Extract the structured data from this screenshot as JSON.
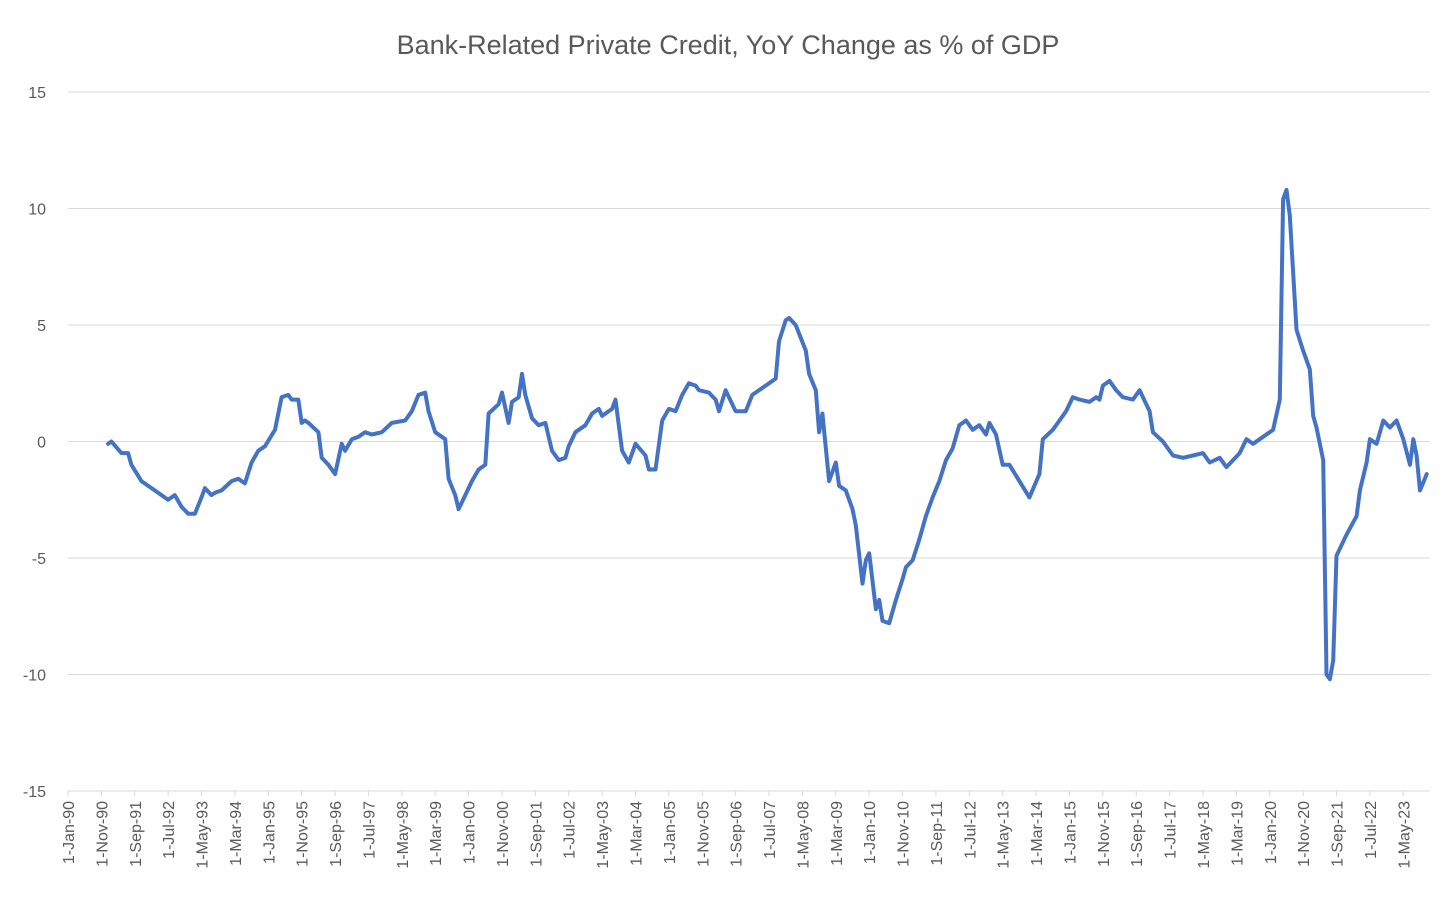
{
  "chart_data": {
    "type": "line",
    "title": "Bank-Related Private Credit, YoY Change as % of GDP",
    "color": "#4472c4",
    "grid": true,
    "ylim": [
      -15,
      15
    ],
    "yticks": [
      -15,
      -10,
      -5,
      0,
      5,
      10,
      15
    ],
    "xlim": [
      "1990-01-01",
      "2024-01-01"
    ],
    "xticks": [
      {
        "value": "1990-01-01",
        "label": "1-Jan-90"
      },
      {
        "value": "1990-11-01",
        "label": "1-Nov-90"
      },
      {
        "value": "1991-09-01",
        "label": "1-Sep-91"
      },
      {
        "value": "1992-07-01",
        "label": "1-Jul-92"
      },
      {
        "value": "1993-05-01",
        "label": "1-May-93"
      },
      {
        "value": "1994-03-01",
        "label": "1-Mar-94"
      },
      {
        "value": "1995-01-01",
        "label": "1-Jan-95"
      },
      {
        "value": "1995-11-01",
        "label": "1-Nov-95"
      },
      {
        "value": "1996-09-01",
        "label": "1-Sep-96"
      },
      {
        "value": "1997-07-01",
        "label": "1-Jul-97"
      },
      {
        "value": "1998-05-01",
        "label": "1-May-98"
      },
      {
        "value": "1999-03-01",
        "label": "1-Mar-99"
      },
      {
        "value": "2000-01-01",
        "label": "1-Jan-00"
      },
      {
        "value": "2000-11-01",
        "label": "1-Nov-00"
      },
      {
        "value": "2001-09-01",
        "label": "1-Sep-01"
      },
      {
        "value": "2002-07-01",
        "label": "1-Jul-02"
      },
      {
        "value": "2003-05-01",
        "label": "1-May-03"
      },
      {
        "value": "2004-03-01",
        "label": "1-Mar-04"
      },
      {
        "value": "2005-01-01",
        "label": "1-Jan-05"
      },
      {
        "value": "2005-11-01",
        "label": "1-Nov-05"
      },
      {
        "value": "2006-09-01",
        "label": "1-Sep-06"
      },
      {
        "value": "2007-07-01",
        "label": "1-Jul-07"
      },
      {
        "value": "2008-05-01",
        "label": "1-May-08"
      },
      {
        "value": "2009-03-01",
        "label": "1-Mar-09"
      },
      {
        "value": "2010-01-01",
        "label": "1-Jan-10"
      },
      {
        "value": "2010-11-01",
        "label": "1-Nov-10"
      },
      {
        "value": "2011-09-01",
        "label": "1-Sep-11"
      },
      {
        "value": "2012-07-01",
        "label": "1-Jul-12"
      },
      {
        "value": "2013-05-01",
        "label": "1-May-13"
      },
      {
        "value": "2014-03-01",
        "label": "1-Mar-14"
      },
      {
        "value": "2015-01-01",
        "label": "1-Jan-15"
      },
      {
        "value": "2015-11-01",
        "label": "1-Nov-15"
      },
      {
        "value": "2016-09-01",
        "label": "1-Sep-16"
      },
      {
        "value": "2017-07-01",
        "label": "1-Jul-17"
      },
      {
        "value": "2018-05-01",
        "label": "1-May-18"
      },
      {
        "value": "2019-03-01",
        "label": "1-Mar-19"
      },
      {
        "value": "2020-01-01",
        "label": "1-Jan-20"
      },
      {
        "value": "2020-11-01",
        "label": "1-Nov-20"
      },
      {
        "value": "2021-09-01",
        "label": "1-Sep-21"
      },
      {
        "value": "2022-07-01",
        "label": "1-Jul-22"
      },
      {
        "value": "2023-05-01",
        "label": "1-May-23"
      }
    ],
    "x": [
      "1991-01-01",
      "1991-02-01",
      "1991-05-01",
      "1991-07-01",
      "1991-08-01",
      "1991-11-01",
      "1992-02-01",
      "1992-05-01",
      "1992-07-01",
      "1992-09-01",
      "1992-11-01",
      "1993-01-01",
      "1993-03-01",
      "1993-05-01",
      "1993-06-01",
      "1993-08-01",
      "1993-09-01",
      "1993-11-01",
      "1994-02-01",
      "1994-04-01",
      "1994-06-01",
      "1994-08-01",
      "1994-10-01",
      "1994-12-01",
      "1995-03-01",
      "1995-05-01",
      "1995-07-01",
      "1995-08-01",
      "1995-10-01",
      "1995-11-01",
      "1995-12-01",
      "1996-01-01",
      "1996-04-01",
      "1996-05-01",
      "1996-07-01",
      "1996-09-01",
      "1996-11-01",
      "1996-12-01",
      "1997-02-01",
      "1997-04-01",
      "1997-06-01",
      "1997-08-01",
      "1997-11-01",
      "1998-02-01",
      "1998-06-01",
      "1998-08-01",
      "1998-10-01",
      "1998-12-01",
      "1999-01-01",
      "1999-03-01",
      "1999-06-01",
      "1999-07-01",
      "1999-09-01",
      "1999-10-01",
      "1999-12-01",
      "2000-02-01",
      "2000-04-01",
      "2000-06-01",
      "2000-07-01",
      "2000-10-01",
      "2000-11-01",
      "2001-01-01",
      "2001-02-01",
      "2001-04-01",
      "2001-05-01",
      "2001-06-01",
      "2001-08-01",
      "2001-10-01",
      "2001-12-01",
      "2002-02-01",
      "2002-04-01",
      "2002-06-01",
      "2002-07-01",
      "2002-09-01",
      "2002-12-01",
      "2003-02-01",
      "2003-04-01",
      "2003-05-01",
      "2003-08-01",
      "2003-09-01",
      "2003-11-01",
      "2004-01-01",
      "2004-03-01",
      "2004-06-01",
      "2004-07-01",
      "2004-09-01",
      "2004-11-01",
      "2005-01-01",
      "2005-03-01",
      "2005-05-01",
      "2005-07-01",
      "2005-09-01",
      "2005-10-01",
      "2006-01-01",
      "2006-03-01",
      "2006-04-01",
      "2006-06-01",
      "2006-09-01",
      "2006-12-01",
      "2007-02-01",
      "2007-04-01",
      "2007-06-01",
      "2007-09-01",
      "2007-10-01",
      "2007-12-01",
      "2008-01-01",
      "2008-03-01",
      "2008-06-01",
      "2008-07-01",
      "2008-09-01",
      "2008-10-01",
      "2008-11-01",
      "2009-01-01",
      "2009-03-01",
      "2009-04-01",
      "2009-06-01",
      "2009-08-01",
      "2009-09-01",
      "2009-11-01",
      "2009-12-01",
      "2010-01-01",
      "2010-03-01",
      "2010-04-01",
      "2010-05-01",
      "2010-07-01",
      "2010-09-01",
      "2010-11-01",
      "2010-12-01",
      "2011-02-01",
      "2011-04-01",
      "2011-06-01",
      "2011-08-01",
      "2011-10-01",
      "2011-12-01",
      "2012-02-01",
      "2012-04-01",
      "2012-06-01",
      "2012-08-01",
      "2012-10-01",
      "2012-12-01",
      "2013-01-01",
      "2013-03-01",
      "2013-05-01",
      "2013-07-01",
      "2013-10-01",
      "2014-01-01",
      "2014-04-01",
      "2014-05-01",
      "2014-08-01",
      "2014-10-01",
      "2014-12-01",
      "2015-02-01",
      "2015-04-01",
      "2015-07-01",
      "2015-09-01",
      "2015-10-01",
      "2015-11-01",
      "2016-01-01",
      "2016-03-01",
      "2016-05-01",
      "2016-08-01",
      "2016-10-01",
      "2017-01-01",
      "2017-02-01",
      "2017-05-01",
      "2017-08-01",
      "2017-11-01",
      "2018-02-01",
      "2018-05-01",
      "2018-07-01",
      "2018-10-01",
      "2018-12-01",
      "2019-04-01",
      "2019-06-01",
      "2019-08-01",
      "2019-11-01",
      "2020-02-01",
      "2020-04-01",
      "2020-05-01",
      "2020-06-01",
      "2020-07-01",
      "2020-09-01",
      "2020-11-01",
      "2021-01-01",
      "2021-02-01",
      "2021-03-01",
      "2021-05-01",
      "2021-06-01",
      "2021-07-01",
      "2021-08-01",
      "2021-09-01",
      "2021-12-01",
      "2022-03-01",
      "2022-04-01",
      "2022-06-01",
      "2022-07-01",
      "2022-09-01",
      "2022-11-01",
      "2023-01-01",
      "2023-03-01",
      "2023-05-01",
      "2023-07-01",
      "2023-08-01",
      "2023-09-01",
      "2023-10-01",
      "2023-12-01"
    ],
    "values": [
      -0.1,
      0,
      -0.5,
      -0.5,
      -1.0,
      -1.7,
      -2.0,
      -2.3,
      -2.5,
      -2.3,
      -2.8,
      -3.1,
      -3.1,
      -2.4,
      -2.0,
      -2.3,
      -2.2,
      -2.1,
      -1.7,
      -1.6,
      -1.8,
      -0.9,
      -0.4,
      -0.2,
      0.5,
      1.9,
      2.0,
      1.8,
      1.8,
      0.8,
      0.9,
      0.8,
      0.4,
      -0.7,
      -1.0,
      -1.4,
      -0.1,
      -0.4,
      0.1,
      0.2,
      0.4,
      0.3,
      0.4,
      0.8,
      0.9,
      1.3,
      2.0,
      2.1,
      1.3,
      0.4,
      0.1,
      -1.6,
      -2.3,
      -2.9,
      -2.3,
      -1.7,
      -1.2,
      -1.0,
      1.2,
      1.6,
      2.1,
      0.8,
      1.7,
      1.9,
      2.9,
      2.0,
      1.0,
      0.7,
      0.8,
      -0.4,
      -0.8,
      -0.7,
      -0.2,
      0.4,
      0.7,
      1.2,
      1.4,
      1.1,
      1.4,
      1.8,
      -0.4,
      -0.9,
      -0.1,
      -0.6,
      -1.2,
      -1.2,
      0.9,
      1.4,
      1.3,
      2.0,
      2.5,
      2.4,
      2.2,
      2.1,
      1.8,
      1.3,
      2.2,
      1.3,
      1.3,
      2.0,
      2.2,
      2.4,
      2.7,
      4.3,
      5.2,
      5.3,
      5.0,
      3.9,
      2.9,
      2.2,
      0.4,
      1.2,
      -1.7,
      -0.9,
      -1.9,
      -2.1,
      -2.9,
      -3.6,
      -6.1,
      -5.1,
      -4.8,
      -7.2,
      -6.8,
      -7.7,
      -7.8,
      -6.8,
      -5.9,
      -5.4,
      -5.1,
      -4.2,
      -3.2,
      -2.4,
      -1.7,
      -0.8,
      -0.3,
      0.7,
      0.9,
      0.5,
      0.7,
      0.3,
      0.8,
      0.3,
      -1.0,
      -1.0,
      -1.7,
      -2.4,
      -1.4,
      0.1,
      0.5,
      0.9,
      1.3,
      1.9,
      1.8,
      1.7,
      1.9,
      1.8,
      2.4,
      2.6,
      2.2,
      1.9,
      1.8,
      2.2,
      1.3,
      0.4,
      0.0,
      -0.6,
      -0.7,
      -0.6,
      -0.5,
      -0.9,
      -0.7,
      -1.1,
      -0.5,
      0.1,
      -0.1,
      0.2,
      0.5,
      1.8,
      10.4,
      10.8,
      9.7,
      4.8,
      3.9,
      3.1,
      1.1,
      0.6,
      -0.8,
      -10.0,
      -10.2,
      -9.4,
      -4.9,
      -4.0,
      -3.2,
      -2.1,
      -0.9,
      0.1,
      -0.1,
      0.9,
      0.6,
      0.9,
      0.1,
      -1.0,
      0.1,
      -0.6,
      -2.1,
      -1.4
    ]
  }
}
